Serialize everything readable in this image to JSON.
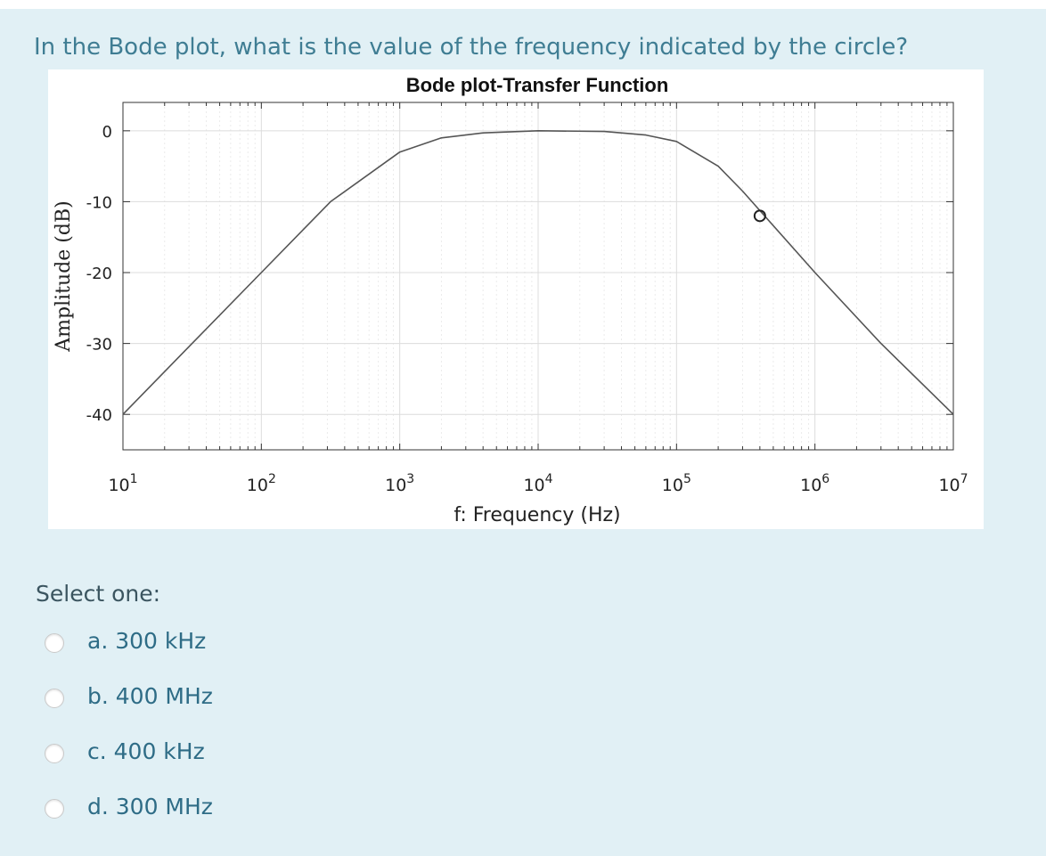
{
  "question": "In the Bode plot, what is the value of the frequency indicated by the circle?",
  "select_label": "Select one:",
  "options": [
    {
      "label": "a. 300 kHz"
    },
    {
      "label": "b. 400 MHz"
    },
    {
      "label": "c. 400 kHz"
    },
    {
      "label": "d. 300 MHz"
    }
  ],
  "colors": {
    "panel_bg": "#e1f0f5",
    "question_text": "#3f7d93",
    "option_text": "#2e6c86",
    "curve": "#555555"
  },
  "chart_data": {
    "type": "line",
    "title": "Bode plot-Transfer Function",
    "xlabel": "f: Frequency (Hz)",
    "ylabel": "Amplitude (dB)",
    "xscale": "log",
    "xlim": [
      10,
      10000000
    ],
    "ylim": [
      -45,
      4
    ],
    "grid": true,
    "xticks": [
      {
        "base": "10",
        "exp": "1"
      },
      {
        "base": "10",
        "exp": "2"
      },
      {
        "base": "10",
        "exp": "3"
      },
      {
        "base": "10",
        "exp": "4"
      },
      {
        "base": "10",
        "exp": "5"
      },
      {
        "base": "10",
        "exp": "6"
      },
      {
        "base": "10",
        "exp": "7"
      }
    ],
    "yticks": [
      {
        "value": 0,
        "label": "0"
      },
      {
        "value": -10,
        "label": "-10"
      },
      {
        "value": -20,
        "label": "-20"
      },
      {
        "value": -30,
        "label": "-30"
      },
      {
        "value": -40,
        "label": "-40"
      }
    ],
    "series": [
      {
        "x": [
          10,
          31.6,
          100,
          316,
          1000,
          2000,
          4000,
          10000,
          30000,
          60000,
          100000,
          200000,
          300000,
          1000000,
          3000000,
          10000000
        ],
        "y": [
          -40,
          -30,
          -20,
          -10,
          -3,
          -1,
          -0.3,
          0,
          -0.1,
          -0.6,
          -1.5,
          -5,
          -8.5,
          -20,
          -30,
          -40
        ]
      }
    ],
    "marker": {
      "x": 400000,
      "y": -12,
      "shape": "circle"
    }
  }
}
